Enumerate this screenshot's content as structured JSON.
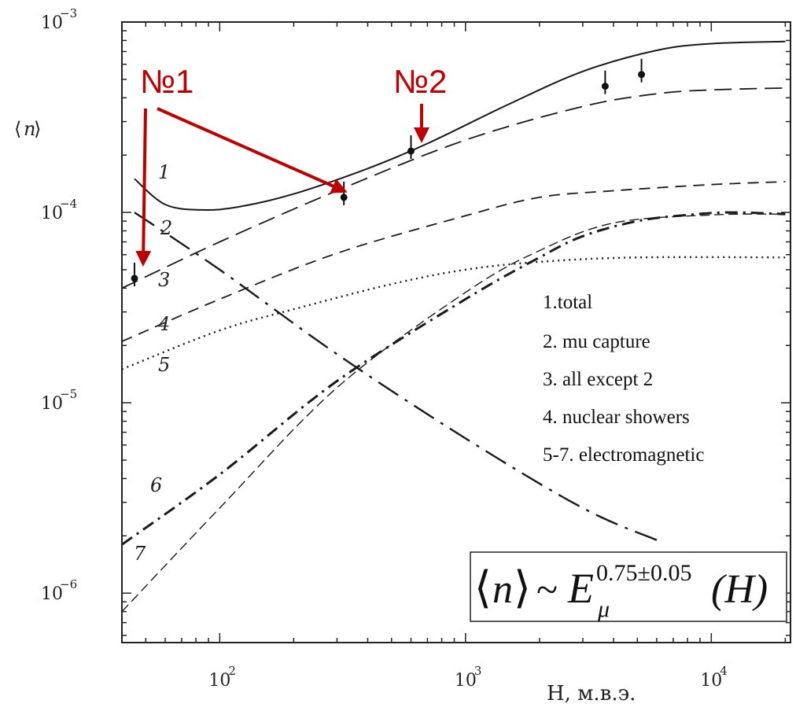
{
  "chart_data": {
    "type": "line",
    "xlabel": "H, м.в.э.",
    "ylabel": "⟨n⟩",
    "xscale": "log",
    "yscale": "log",
    "xlim": [
      40,
      21000
    ],
    "ylim": [
      5.5e-07,
      0.001
    ],
    "x_ticks": [
      100,
      1000,
      10000
    ],
    "x_tick_labels": [
      "10",
      "10",
      "10"
    ],
    "x_tick_exponents": [
      "2",
      "3",
      "4"
    ],
    "y_ticks": [
      1e-06,
      1e-05,
      0.0001,
      0.001
    ],
    "y_tick_labels": [
      "10",
      "10",
      "10",
      "10"
    ],
    "y_tick_exponents": [
      "−6",
      "−5",
      "−4",
      "−3"
    ],
    "grid": false,
    "series": [
      {
        "name": "1",
        "style": "solid",
        "x": [
          45,
          60,
          85,
          120,
          200,
          400,
          700,
          1500,
          3000,
          6000,
          10000,
          20000
        ],
        "y": [
          0.00015,
          0.00011,
          0.000103,
          0.000107,
          0.000125,
          0.00017,
          0.00023,
          0.00037,
          0.00055,
          0.00071,
          0.00077,
          0.00079
        ]
      },
      {
        "name": "2",
        "style": "long-dash",
        "x": [
          40,
          100,
          300,
          1000,
          3000,
          6000,
          10000,
          20000
        ],
        "y": [
          4e-05,
          7e-05,
          0.00013,
          0.00024,
          0.00036,
          0.00042,
          0.00044,
          0.00045
        ]
      },
      {
        "name": "3",
        "style": "dash",
        "x": [
          40,
          100,
          300,
          1000,
          2000,
          4000,
          10000,
          20000
        ],
        "y": [
          2.1e-05,
          3.5e-05,
          6.1e-05,
          9.6e-05,
          0.00012,
          0.00013,
          0.00014,
          0.000145
        ]
      },
      {
        "name": "4",
        "style": "dash-dot",
        "x": [
          45,
          100,
          300,
          1000,
          3000,
          6000
        ],
        "y": [
          0.0001,
          5e-05,
          1.8e-05,
          6.5e-06,
          2.8e-06,
          1.9e-06
        ]
      },
      {
        "name": "5",
        "style": "dotted",
        "x": [
          40,
          100,
          200,
          500,
          1000,
          2000,
          5000,
          20000
        ],
        "y": [
          1.5e-05,
          2.4e-05,
          3.1e-05,
          4.2e-05,
          5e-05,
          5.5e-05,
          5.8e-05,
          5.8e-05
        ]
      },
      {
        "name": "6",
        "style": "heavy-dash-dot",
        "x": [
          40,
          100,
          300,
          1000,
          2000,
          3000,
          5000,
          8000,
          12000,
          20000
        ],
        "y": [
          1.8e-06,
          4.2e-06,
          1.3e-05,
          3.5e-05,
          5.8e-05,
          7.5e-05,
          9e-05,
          9.7e-05,
          0.0001,
          9.8e-05
        ]
      },
      {
        "name": "7",
        "style": "thin-dash",
        "x": [
          40,
          100,
          300,
          1000,
          2000,
          4000,
          10000,
          20000
        ],
        "y": [
          8e-07,
          2.8e-06,
          1.2e-05,
          3.8e-05,
          6.3e-05,
          8.8e-05,
          9.7e-05,
          9.8e-05
        ]
      }
    ],
    "data_points": [
      {
        "x": 45,
        "y": 4.5e-05
      },
      {
        "x": 320,
        "y": 0.00012
      },
      {
        "x": 600,
        "y": 0.00021
      },
      {
        "x": 3700,
        "y": 0.00046
      },
      {
        "x": 5200,
        "y": 0.00053
      }
    ],
    "legend": [
      "1.total",
      "2. mu capture",
      "3. all except 2",
      "4. nuclear showers",
      "5-7. electromagnetic"
    ],
    "annotations": {
      "label1": "№1",
      "label2": "№2",
      "formula_lhs": "n",
      "formula_sim": "~",
      "formula_base": "E",
      "formula_sub": "μ",
      "formula_sup": "0.75±0.05",
      "formula_arg": "(H)"
    }
  }
}
